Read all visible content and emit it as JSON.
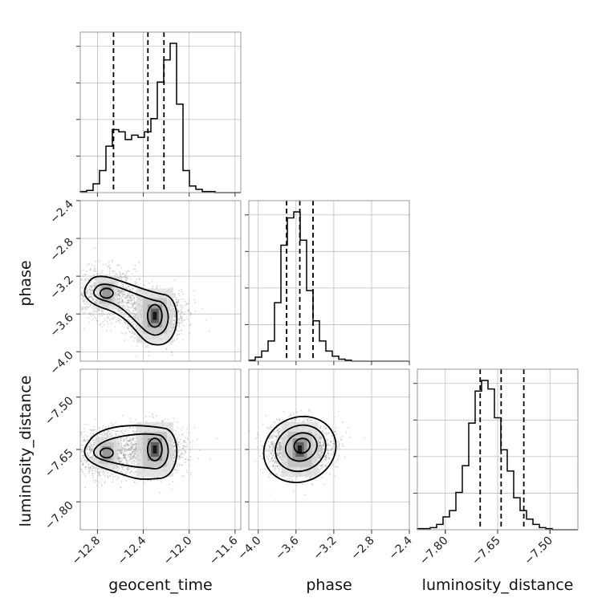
{
  "chart_data": {
    "type": "corner",
    "parameters": [
      {
        "key": "geocent_time",
        "label": "geocent_time",
        "range": [
          -12.95,
          -11.55
        ],
        "ticks": [
          -12.8,
          -12.4,
          -12.0,
          -11.6
        ],
        "tick_labels": [
          "−12.8",
          "−12.4",
          "−12.0",
          "−11.6"
        ],
        "quantiles": [
          -12.66,
          -12.36,
          -12.22
        ],
        "histogram": {
          "edges_start": -12.95,
          "bin_width": 0.056,
          "counts": [
            1,
            2,
            8,
            20,
            42,
            57,
            55,
            48,
            52,
            50,
            55,
            67,
            100,
            120,
            135,
            80,
            20,
            6,
            3,
            1,
            1,
            0,
            0,
            0,
            0
          ]
        }
      },
      {
        "key": "phase",
        "label": "phase",
        "range": [
          -4.1,
          -2.4
        ],
        "ticks": [
          -4.0,
          -3.6,
          -3.2,
          -2.8,
          -2.4
        ],
        "tick_labels": [
          "−4.0",
          "−3.6",
          "−3.2",
          "−2.8",
          "−2.4"
        ],
        "quantiles": [
          -3.7,
          -3.56,
          -3.42
        ],
        "histogram": {
          "edges_start": -4.1,
          "bin_width": 0.068,
          "counts": [
            1,
            4,
            10,
            20,
            58,
            115,
            142,
            148,
            120,
            70,
            40,
            20,
            10,
            5,
            2,
            1,
            0,
            0,
            0,
            0,
            0,
            0,
            0,
            0,
            0
          ]
        }
      },
      {
        "key": "luminosity_distance",
        "label": "luminosity_distance",
        "range": [
          -7.88,
          -7.42
        ],
        "ticks": [
          -7.8,
          -7.65,
          -7.5
        ],
        "tick_labels": [
          "−7.80",
          "−7.65",
          "−7.50"
        ],
        "quantiles": [
          -7.7,
          -7.64,
          -7.575
        ],
        "histogram": {
          "edges_start": -7.88,
          "bin_width": 0.0184,
          "counts": [
            1,
            1,
            2,
            5,
            12,
            18,
            35,
            60,
            100,
            130,
            140,
            132,
            105,
            75,
            55,
            30,
            18,
            10,
            5,
            2,
            1,
            0,
            0,
            0,
            0
          ]
        }
      }
    ],
    "pairs": [
      {
        "x": "geocent_time",
        "y": "phase",
        "y_ticks": [
          -2.4,
          -2.8,
          -3.2,
          -3.6,
          -4.0
        ],
        "y_tick_labels": [
          "−2.4",
          "−2.8",
          "−3.2",
          "−3.6",
          "−4.0"
        ],
        "modes": [
          [
            -12.72,
            -3.38
          ],
          [
            -12.3,
            -3.62
          ]
        ]
      },
      {
        "x": "geocent_time",
        "y": "luminosity_distance",
        "y_ticks": [
          -7.5,
          -7.65,
          -7.8
        ],
        "y_tick_labels": [
          "−7.50",
          "−7.65",
          "−7.80"
        ],
        "modes": [
          [
            -12.72,
            -7.66
          ],
          [
            -12.3,
            -7.65
          ]
        ]
      },
      {
        "x": "phase",
        "y": "luminosity_distance",
        "modes": [
          [
            -3.56,
            -7.65
          ]
        ]
      }
    ]
  }
}
